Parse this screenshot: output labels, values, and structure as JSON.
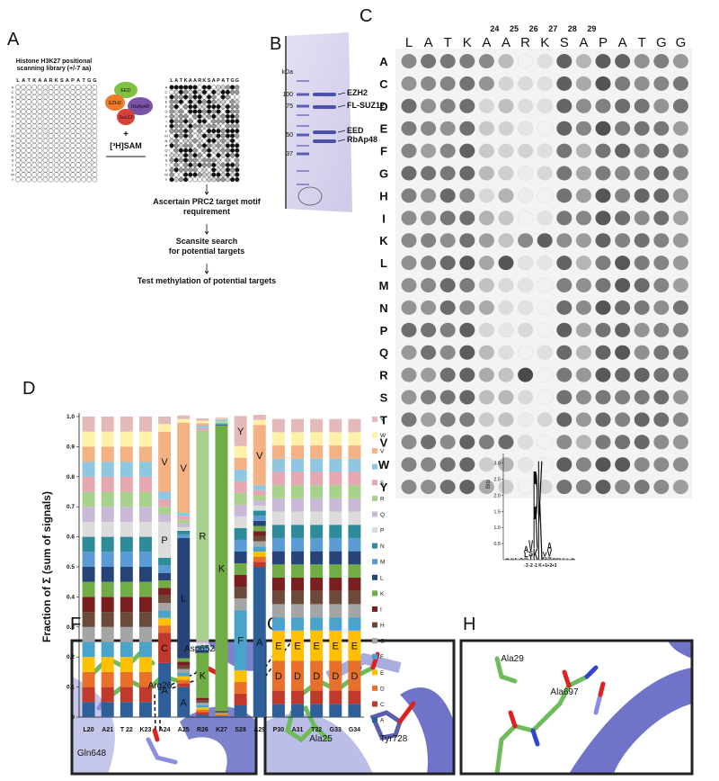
{
  "panel_labels": [
    "A",
    "B",
    "C",
    "D",
    "E",
    "F",
    "G",
    "H"
  ],
  "panel_a": {
    "title_lines": [
      "Histone H3K27 positional",
      "scanning library (+/-7 aa)"
    ],
    "sequence": [
      "L",
      "A",
      "T",
      "K",
      "A",
      "A",
      "R",
      "K",
      "S",
      "A",
      "P",
      "A",
      "T",
      "G",
      "G"
    ],
    "highlight": 7,
    "highlight_color": "#d0202a",
    "rows": [
      "A",
      "C",
      "D",
      "E",
      "F",
      "G",
      "H",
      "I",
      "K",
      "L",
      "M",
      "N",
      "P",
      "Q",
      "R",
      "S",
      "T",
      "V",
      "W",
      "Y"
    ],
    "complex": [
      "EED",
      "EZH2",
      "RbAp48",
      "Suz12"
    ],
    "plus": "+",
    "cofactor": "[³H]SAM",
    "steps": [
      [
        "Ascertain PRC2 target motif",
        "requirement"
      ],
      [
        "Scansite search",
        "for potential targets"
      ],
      [
        "Test methylation of potential targets"
      ]
    ]
  },
  "panel_b": {
    "unit": "kDa",
    "markers": [
      100,
      75,
      50,
      37
    ],
    "bands": [
      "EZH2",
      "FL-SUZ12",
      "EED",
      "RbAp48"
    ]
  },
  "panel_c": {
    "columns": [
      "L",
      "A",
      "T",
      "K",
      "A",
      "A",
      "R",
      "K",
      "S",
      "A",
      "P",
      "A",
      "T",
      "G",
      "G"
    ],
    "column_numbers": [
      null,
      null,
      null,
      null,
      24,
      25,
      26,
      27,
      28,
      29,
      null,
      null,
      null,
      null,
      null
    ],
    "highlight": 7,
    "highlight_color": "#d0202a",
    "rows": [
      "A",
      "C",
      "D",
      "E",
      "F",
      "G",
      "H",
      "I",
      "K",
      "L",
      "M",
      "N",
      "P",
      "Q",
      "R",
      "S",
      "T",
      "V",
      "W",
      "Y"
    ]
  },
  "chart_data": [
    {
      "type": "stacked_bar",
      "ylabel": "Fraction of Σ (sum of signals)",
      "categories": [
        "L20",
        "A21",
        "T 22",
        "K23",
        "A24",
        "A25",
        "R26",
        "K27",
        "S28",
        "A29",
        "P30",
        "A31",
        "T32",
        "G33",
        "G34"
      ],
      "ylim": [
        0,
        1
      ],
      "yticks": [
        0,
        0.1,
        0.2,
        0.3,
        0.4,
        0.5,
        0.6,
        0.7,
        0.8,
        0.9,
        {
          "value": 1,
          "label": "1.0"
        }
      ],
      "legend": "right",
      "series": [
        {
          "name": "A",
          "color": "#2f5f98",
          "values": [
            0.05,
            0.05,
            0.05,
            0.05,
            0.18,
            0.1,
            0.008,
            0.0025,
            0.039,
            0.5,
            0.044,
            0.044,
            0.044,
            0.044,
            0.044
          ]
        },
        {
          "name": "C",
          "color": "#c0392b",
          "values": [
            0.05,
            0.05,
            0.05,
            0.05,
            0.1,
            0.012,
            0.008,
            0.0025,
            0.039,
            0.017,
            0.044,
            0.044,
            0.044,
            0.044,
            0.044
          ]
        },
        {
          "name": "D",
          "color": "#e8702a",
          "values": [
            0.05,
            0.05,
            0.05,
            0.05,
            0.025,
            0.012,
            0.008,
            0.0025,
            0.039,
            0.017,
            0.1,
            0.1,
            0.1,
            0.1,
            0.1
          ]
        },
        {
          "name": "E",
          "color": "#ffc000",
          "values": [
            0.05,
            0.05,
            0.05,
            0.05,
            0.025,
            0.012,
            0.008,
            0.0025,
            0.039,
            0.017,
            0.1,
            0.1,
            0.1,
            0.1,
            0.1
          ]
        },
        {
          "name": "F",
          "color": "#4aa3c8",
          "values": [
            0.05,
            0.05,
            0.05,
            0.05,
            0.025,
            0.012,
            0.008,
            0.0025,
            0.2,
            0.017,
            0.044,
            0.044,
            0.044,
            0.044,
            0.044
          ]
        },
        {
          "name": "G",
          "color": "#a5a5a5",
          "values": [
            0.05,
            0.05,
            0.05,
            0.05,
            0.025,
            0.012,
            0.008,
            0.0025,
            0.039,
            0.017,
            0.044,
            0.044,
            0.044,
            0.044,
            0.044
          ]
        },
        {
          "name": "H",
          "color": "#6b4a3a",
          "values": [
            0.05,
            0.05,
            0.05,
            0.05,
            0.025,
            0.012,
            0.008,
            0.0025,
            0.039,
            0.017,
            0.044,
            0.044,
            0.044,
            0.044,
            0.044
          ]
        },
        {
          "name": "I",
          "color": "#7a1f1f",
          "values": [
            0.05,
            0.05,
            0.05,
            0.05,
            0.025,
            0.012,
            0.008,
            0.0025,
            0.039,
            0.017,
            0.044,
            0.044,
            0.044,
            0.044,
            0.044
          ]
        },
        {
          "name": "K",
          "color": "#70ad47",
          "values": [
            0.05,
            0.05,
            0.05,
            0.05,
            0.025,
            0.012,
            0.15,
            0.95,
            0.039,
            0.017,
            0.044,
            0.044,
            0.044,
            0.044,
            0.044
          ]
        },
        {
          "name": "L",
          "color": "#264478",
          "values": [
            0.05,
            0.05,
            0.05,
            0.05,
            0.025,
            0.4,
            0.008,
            0.0025,
            0.039,
            0.017,
            0.044,
            0.044,
            0.044,
            0.044,
            0.044
          ]
        },
        {
          "name": "M",
          "color": "#5b9bd5",
          "values": [
            0.05,
            0.05,
            0.05,
            0.05,
            0.025,
            0.012,
            0.008,
            0.0025,
            0.039,
            0.017,
            0.044,
            0.044,
            0.044,
            0.044,
            0.044
          ]
        },
        {
          "name": "N",
          "color": "#2e8b9a",
          "values": [
            0.05,
            0.05,
            0.05,
            0.05,
            0.025,
            0.012,
            0.008,
            0.0025,
            0.039,
            0.017,
            0.044,
            0.044,
            0.044,
            0.044,
            0.044
          ]
        },
        {
          "name": "P",
          "color": "#dcdcdc",
          "values": [
            0.05,
            0.05,
            0.05,
            0.05,
            0.12,
            0.012,
            0.008,
            0.0025,
            0.039,
            0.017,
            0.044,
            0.044,
            0.044,
            0.044,
            0.044
          ]
        },
        {
          "name": "Q",
          "color": "#c9b8d6",
          "values": [
            0.05,
            0.05,
            0.05,
            0.05,
            0.025,
            0.012,
            0.008,
            0.0025,
            0.039,
            0.017,
            0.044,
            0.044,
            0.044,
            0.044,
            0.044
          ]
        },
        {
          "name": "R",
          "color": "#a9d18e",
          "values": [
            0.05,
            0.05,
            0.05,
            0.05,
            0.025,
            0.012,
            0.7,
            0.0025,
            0.039,
            0.017,
            0.044,
            0.044,
            0.044,
            0.044,
            0.044
          ]
        },
        {
          "name": "S",
          "color": "#e6a8b0",
          "values": [
            0.05,
            0.05,
            0.05,
            0.05,
            0.025,
            0.012,
            0.008,
            0.0025,
            0.039,
            0.017,
            0.044,
            0.044,
            0.044,
            0.044,
            0.044
          ]
        },
        {
          "name": "T",
          "color": "#8fc7e0",
          "values": [
            0.05,
            0.05,
            0.05,
            0.05,
            0.025,
            0.012,
            0.008,
            0.0025,
            0.039,
            0.017,
            0.044,
            0.044,
            0.044,
            0.044,
            0.044
          ]
        },
        {
          "name": "V",
          "color": "#f4b183",
          "values": [
            0.05,
            0.05,
            0.05,
            0.05,
            0.2,
            0.3,
            0.008,
            0.0025,
            0.039,
            0.2,
            0.044,
            0.044,
            0.044,
            0.044,
            0.044
          ]
        },
        {
          "name": "W",
          "color": "#fff2a8",
          "values": [
            0.05,
            0.05,
            0.05,
            0.05,
            0.025,
            0.012,
            0.008,
            0.0025,
            0.039,
            0.017,
            0.044,
            0.044,
            0.044,
            0.044,
            0.044
          ]
        },
        {
          "name": "Y",
          "color": "#e3b9b9",
          "values": [
            0.05,
            0.05,
            0.05,
            0.05,
            0.025,
            0.012,
            0.008,
            0.0025,
            0.1,
            0.017,
            0.044,
            0.044,
            0.044,
            0.044,
            0.044
          ]
        }
      ],
      "annotations": [
        {
          "category": "A24",
          "text": "V"
        },
        {
          "category": "A24",
          "text": "P"
        },
        {
          "category": "A24",
          "text": "C"
        },
        {
          "category": "A24",
          "text": "A"
        },
        {
          "category": "A25",
          "text": "V"
        },
        {
          "category": "A25",
          "text": "L"
        },
        {
          "category": "A25",
          "text": "A"
        },
        {
          "category": "R26",
          "text": "R"
        },
        {
          "category": "R26",
          "text": "K"
        },
        {
          "category": "K27",
          "text": "K"
        },
        {
          "category": "S28",
          "text": "Y"
        },
        {
          "category": "S28",
          "text": "F"
        },
        {
          "category": "A29",
          "text": "V"
        },
        {
          "category": "A29",
          "text": "A"
        },
        {
          "category": "P30",
          "text": "E"
        },
        {
          "category": "P30",
          "text": "D"
        },
        {
          "category": "A31",
          "text": "E"
        },
        {
          "category": "A31",
          "text": "D"
        },
        {
          "category": "T32",
          "text": "E"
        },
        {
          "category": "T32",
          "text": "D"
        },
        {
          "category": "G33",
          "text": "E"
        },
        {
          "category": "G33",
          "text": "D"
        },
        {
          "category": "G34",
          "text": "E"
        },
        {
          "category": "G34",
          "text": "D"
        }
      ]
    },
    {
      "type": "logo",
      "ylabel": "Bits",
      "ylim": [
        0,
        3.3
      ],
      "yticks": [
        0.5,
        {
          "value": 1,
          "label": "1.0"
        },
        1.5,
        {
          "value": 2,
          "label": "2.0"
        },
        2.5,
        {
          "value": 3,
          "label": "3.0"
        }
      ],
      "categories": [
        null,
        null,
        null,
        null,
        "-3",
        "-2",
        "-1",
        "K",
        "+1",
        "+2",
        "+3",
        null,
        null,
        null,
        null
      ],
      "highlight": 7,
      "highlight_color": "#d0202a",
      "letter_colors": {
        "K": "#2b3fbf",
        "R": "#2b3fbf",
        "A": "#f0a020",
        "V": "#f0a020",
        "L": "#f0a020",
        "F": "#f0a020",
        "S": "#3aa83a",
        "T": "#3aa83a",
        "G": "#9050c0"
      },
      "stacks": [
        [
          {
            "letter": "A",
            "bits": 0.04
          }
        ],
        [
          {
            "letter": "S",
            "bits": 0.04
          }
        ],
        [
          {
            "letter": "L",
            "bits": 0.05
          }
        ],
        [
          {
            "letter": "A",
            "bits": 0.06
          }
        ],
        [
          {
            "letter": "S",
            "bits": 0.08
          },
          {
            "letter": "L",
            "bits": 0.15
          },
          {
            "letter": "A",
            "bits": 0.2
          }
        ],
        [
          {
            "letter": "T",
            "bits": 0.12
          },
          {
            "letter": "S",
            "bits": 0.15
          },
          {
            "letter": "V",
            "bits": 0.35
          }
        ],
        [
          {
            "letter": "K",
            "bits": 0.35
          },
          {
            "letter": "R",
            "bits": 2.5
          }
        ],
        [
          {
            "letter": "K",
            "bits": 3.2
          }
        ],
        [
          {
            "letter": "G",
            "bits": 0.1
          },
          {
            "letter": "V",
            "bits": 0.15
          }
        ],
        [
          {
            "letter": "S",
            "bits": 0.1
          },
          {
            "letter": "V",
            "bits": 0.2
          },
          {
            "letter": "A",
            "bits": 0.25
          }
        ],
        [
          {
            "letter": "A",
            "bits": 0.06
          }
        ],
        [
          {
            "letter": "G",
            "bits": 0.05
          }
        ],
        [
          {
            "letter": "T",
            "bits": 0.04
          }
        ],
        [
          {
            "letter": "L",
            "bits": 0.04
          }
        ],
        [
          {
            "letter": "A",
            "bits": 0.03
          }
        ]
      ]
    }
  ],
  "panel_f": {
    "labels": [
      "Arg26",
      "Asp652",
      "Gln648"
    ]
  },
  "panel_g": {
    "labels": [
      "Ala25",
      "Tyr728"
    ]
  },
  "panel_h": {
    "labels": [
      "Ala29",
      "Ala697"
    ]
  }
}
